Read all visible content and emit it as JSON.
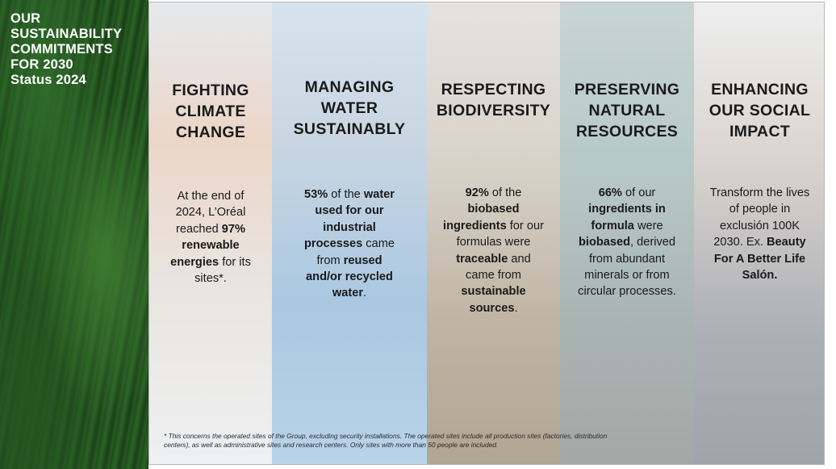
{
  "sidebar": {
    "title_lines": [
      "OUR",
      "SUSTAINABILITY",
      "COMMITMENTS",
      "FOR 2030",
      "Status 2024"
    ]
  },
  "columns": [
    {
      "heading_lines": [
        "FIGHTING",
        "CLIMATE",
        "CHANGE"
      ],
      "body_lines": [
        [
          {
            "t": "At the end of"
          }
        ],
        [
          {
            "t": "2024, L’Oréal"
          }
        ],
        [
          {
            "t": "reached "
          },
          {
            "t": "97%",
            "b": true
          }
        ],
        [
          {
            "t": "renewable",
            "b": true
          }
        ],
        [
          {
            "t": "energies",
            "b": true
          },
          {
            "t": " for its"
          }
        ],
        [
          {
            "t": "sites*."
          }
        ]
      ]
    },
    {
      "heading_lines": [
        "MANAGING",
        "WATER",
        "SUSTAINABLY"
      ],
      "body_lines": [
        [
          {
            "t": "53%",
            "b": true
          },
          {
            "t": " of the "
          },
          {
            "t": "water",
            "b": true
          }
        ],
        [
          {
            "t": "used for our",
            "b": true
          }
        ],
        [
          {
            "t": "industrial",
            "b": true
          }
        ],
        [
          {
            "t": "processes",
            "b": true
          },
          {
            "t": " came"
          }
        ],
        [
          {
            "t": "from "
          },
          {
            "t": "reused",
            "b": true
          }
        ],
        [
          {
            "t": "and/or recycled",
            "b": true
          }
        ],
        [
          {
            "t": "water",
            "b": true
          },
          {
            "t": "."
          }
        ]
      ]
    },
    {
      "heading_lines": [
        "RESPECTING",
        "BIODIVERSITY"
      ],
      "body_lines": [
        [
          {
            "t": "92%",
            "b": true
          },
          {
            "t": " of the"
          }
        ],
        [
          {
            "t": "biobased",
            "b": true
          }
        ],
        [
          {
            "t": "ingredients",
            "b": true
          },
          {
            "t": " for our"
          }
        ],
        [
          {
            "t": "formulas were"
          }
        ],
        [
          {
            "t": "traceable",
            "b": true
          },
          {
            "t": " and"
          }
        ],
        [
          {
            "t": "came from"
          }
        ],
        [
          {
            "t": "sustainable",
            "b": true
          }
        ],
        [
          {
            "t": "sources",
            "b": true
          },
          {
            "t": "."
          }
        ]
      ]
    },
    {
      "heading_lines": [
        "PRESERVING",
        "NATURAL",
        "RESOURCES"
      ],
      "body_lines": [
        [
          {
            "t": "66%",
            "b": true
          },
          {
            "t": " of our"
          }
        ],
        [
          {
            "t": "ingredients in",
            "b": true
          }
        ],
        [
          {
            "t": "formula",
            "b": true
          },
          {
            "t": " were"
          }
        ],
        [
          {
            "t": "biobased",
            "b": true
          },
          {
            "t": ", derived"
          }
        ],
        [
          {
            "t": "from abundant"
          }
        ],
        [
          {
            "t": "minerals or from"
          }
        ],
        [
          {
            "t": "circular processes."
          }
        ]
      ]
    },
    {
      "heading_lines": [
        "ENHANCING",
        "OUR SOCIAL",
        "IMPACT"
      ],
      "body_lines": [
        [
          {
            "t": "Transform the lives"
          }
        ],
        [
          {
            "t": "of people in"
          }
        ],
        [
          {
            "t": "exclusión 100K"
          }
        ],
        [
          {
            "t": "2030. Ex. "
          },
          {
            "t": "Beauty",
            "b": true
          }
        ],
        [
          {
            "t": "For A Better Life",
            "b": true
          }
        ],
        [
          {
            "t": "Salón.",
            "b": true
          }
        ]
      ]
    }
  ],
  "footnote_lines": [
    "* This concerns the operated sites of the Group, excluding security installations. The operated sites include all production sites (factories, distribution",
    "centers), as well as administrative sites and research centers. Only sites with more than 50 people are included."
  ]
}
